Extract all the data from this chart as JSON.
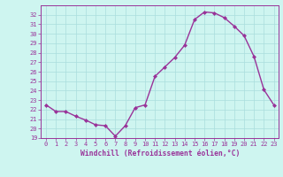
{
  "x": [
    0,
    1,
    2,
    3,
    4,
    5,
    6,
    7,
    8,
    9,
    10,
    11,
    12,
    13,
    14,
    15,
    16,
    17,
    18,
    19,
    20,
    21,
    22,
    23
  ],
  "y": [
    22.5,
    21.8,
    21.8,
    21.3,
    20.9,
    20.4,
    20.3,
    19.2,
    20.3,
    22.2,
    22.5,
    25.5,
    26.5,
    27.5,
    28.8,
    31.5,
    32.3,
    32.2,
    31.7,
    30.8,
    29.8,
    27.6,
    24.1,
    22.5
  ],
  "line_color": "#993399",
  "marker": "D",
  "markersize": 2,
  "linewidth": 1.0,
  "bg_color": "#cef5f0",
  "grid_color": "#aadddd",
  "tick_color": "#993399",
  "label_color": "#993399",
  "xlabel": "Windchill (Refroidissement éolien,°C)",
  "ylabel": "",
  "xlim": [
    -0.5,
    23.5
  ],
  "ylim": [
    19,
    33
  ],
  "yticks": [
    19,
    20,
    21,
    22,
    23,
    24,
    25,
    26,
    27,
    28,
    29,
    30,
    31,
    32
  ],
  "xticks": [
    0,
    1,
    2,
    3,
    4,
    5,
    6,
    7,
    8,
    9,
    10,
    11,
    12,
    13,
    14,
    15,
    16,
    17,
    18,
    19,
    20,
    21,
    22,
    23
  ],
  "font_family": "monospace",
  "xlabel_fontsize": 5.8,
  "tick_fontsize": 5.0
}
